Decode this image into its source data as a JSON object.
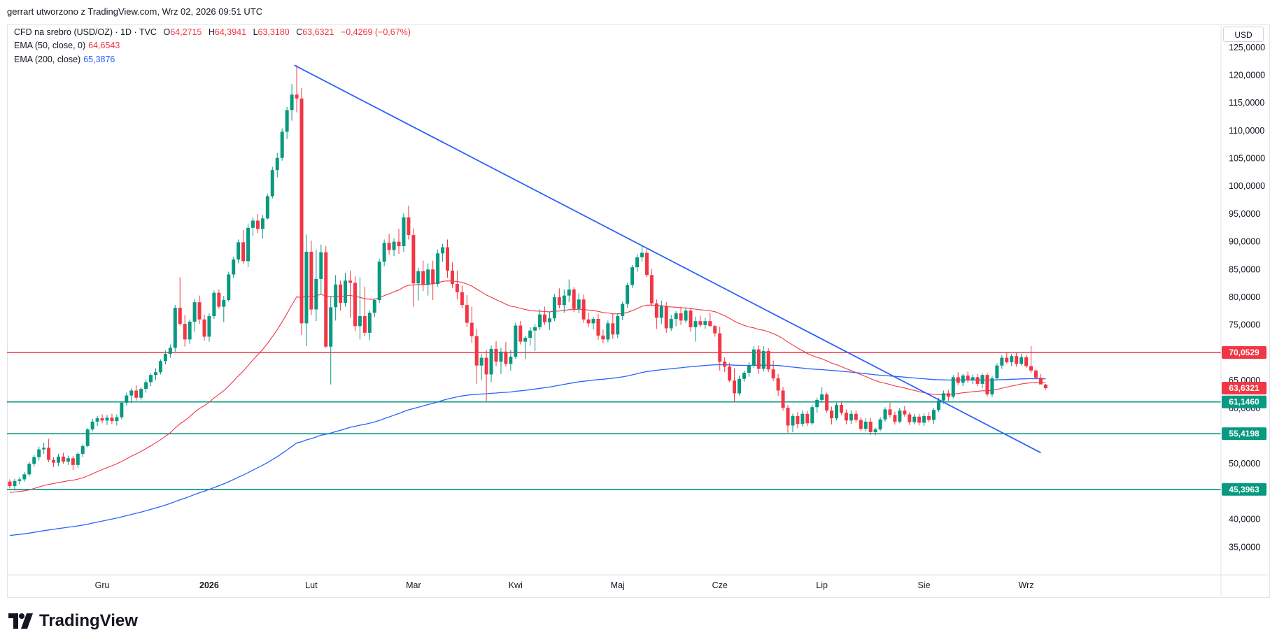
{
  "header": {
    "attribution": "gerrart utworzono z TradingView.com, Wrz 02, 2026 09:51 UTC"
  },
  "legend": {
    "instrument": "CFD na srebro (USD/OZ) · 1D · TVC",
    "o_label": "O",
    "o_value": "64,2715",
    "h_label": "H",
    "h_value": "64,3941",
    "l_label": "L",
    "l_value": "63,3180",
    "c_label": "C",
    "c_value": "63,6321",
    "change": "−0,4269 (−0,67%)",
    "ema50_label": "EMA (50, close, 0)",
    "ema50_value": "64,6543",
    "ema200_label": "EMA (200, close)",
    "ema200_value": "65,3876"
  },
  "currency": "USD",
  "brand": {
    "name": "TradingView"
  },
  "colors": {
    "up": "#089981",
    "down": "#f23645",
    "ema50": "#f23645",
    "ema200": "#2962ff",
    "trendline": "#2962ff",
    "resistance": "#f23645",
    "support": "#089981"
  },
  "chart_data": {
    "type": "candlestick",
    "yaxis": {
      "min": 30,
      "max": 129,
      "ticks": [
        35,
        40,
        50,
        55,
        60,
        65,
        75,
        80,
        85,
        90,
        95,
        100,
        105,
        110,
        115,
        120,
        125
      ],
      "tick_labels": [
        "35,0000",
        "40,0000",
        "50,0000",
        "55,0000",
        "60,0000",
        "65,0000",
        "75,0000",
        "80,0000",
        "85,0000",
        "90,0000",
        "95,0000",
        "100,0000",
        "105,0000",
        "110,0000",
        "115,0000",
        "120,0000",
        "125,0000"
      ]
    },
    "xaxis": {
      "labels": [
        "Gru",
        "2026",
        "Lut",
        "Mar",
        "Kwi",
        "Maj",
        "Cze",
        "Lip",
        "Sie",
        "Wrz"
      ],
      "label_bars": [
        19,
        41,
        62,
        83,
        104,
        125,
        146,
        167,
        188,
        209
      ],
      "bold": [
        "2026"
      ]
    },
    "price_levels": [
      {
        "value": 70.0529,
        "label": "70,0529",
        "role": "resistance"
      },
      {
        "value": 63.6321,
        "label": "63,6321",
        "role": "last"
      },
      {
        "value": 61.146,
        "label": "61,1460",
        "role": "support"
      },
      {
        "value": 55.4198,
        "label": "55,4198",
        "role": "support"
      },
      {
        "value": 45.3963,
        "label": "45,3963",
        "role": "support"
      }
    ],
    "trendline": {
      "from": [
        58.5,
        121.8
      ],
      "to": [
        212,
        52.0
      ]
    },
    "candles": [
      [
        46.8,
        47.2,
        45.6,
        46.0
      ],
      [
        46.0,
        47.3,
        45.2,
        46.9
      ],
      [
        46.9,
        47.6,
        46.3,
        47.2
      ],
      [
        47.2,
        48.5,
        46.8,
        48.1
      ],
      [
        48.1,
        50.4,
        47.8,
        50.0
      ],
      [
        50.0,
        51.6,
        49.5,
        51.2
      ],
      [
        51.2,
        53.1,
        50.6,
        52.6
      ],
      [
        52.6,
        53.8,
        51.8,
        52.9
      ],
      [
        52.9,
        54.5,
        50.3,
        50.7
      ],
      [
        50.7,
        51.2,
        49.4,
        50.2
      ],
      [
        50.2,
        51.8,
        49.6,
        51.3
      ],
      [
        51.3,
        52.0,
        50.0,
        50.4
      ],
      [
        50.4,
        51.5,
        49.8,
        51.0
      ],
      [
        51.0,
        51.4,
        48.9,
        49.8
      ],
      [
        49.8,
        52.1,
        49.3,
        51.8
      ],
      [
        51.8,
        53.5,
        51.2,
        53.2
      ],
      [
        53.2,
        56.4,
        53.0,
        56.2
      ],
      [
        56.2,
        58.1,
        55.9,
        57.6
      ],
      [
        57.6,
        58.6,
        56.8,
        58.2
      ],
      [
        58.2,
        58.9,
        57.3,
        57.8
      ],
      [
        57.8,
        58.8,
        57.0,
        58.3
      ],
      [
        58.3,
        59.0,
        57.2,
        57.7
      ],
      [
        57.7,
        58.9,
        56.9,
        58.4
      ],
      [
        58.4,
        61.2,
        58.0,
        61.0
      ],
      [
        61.0,
        62.8,
        60.5,
        62.3
      ],
      [
        62.3,
        63.6,
        61.0,
        63.2
      ],
      [
        63.2,
        64.1,
        61.4,
        61.9
      ],
      [
        61.9,
        63.8,
        61.5,
        63.5
      ],
      [
        63.5,
        65.2,
        62.8,
        64.7
      ],
      [
        64.7,
        66.3,
        64.0,
        66.0
      ],
      [
        66.0,
        67.2,
        65.1,
        66.5
      ],
      [
        66.5,
        68.8,
        66.1,
        68.5
      ],
      [
        68.5,
        70.4,
        67.9,
        69.8
      ],
      [
        69.8,
        71.5,
        69.1,
        70.9
      ],
      [
        70.9,
        78.6,
        70.2,
        78.1
      ],
      [
        78.1,
        83.6,
        74.9,
        75.2
      ],
      [
        75.2,
        76.8,
        71.1,
        72.4
      ],
      [
        72.4,
        76.0,
        71.6,
        75.6
      ],
      [
        75.6,
        79.7,
        73.8,
        79.1
      ],
      [
        79.1,
        80.3,
        75.2,
        76.0
      ],
      [
        76.0,
        76.9,
        72.2,
        72.9
      ],
      [
        72.9,
        77.1,
        72.0,
        76.6
      ],
      [
        76.6,
        81.2,
        76.1,
        80.8
      ],
      [
        80.8,
        81.4,
        77.9,
        78.3
      ],
      [
        78.3,
        80.2,
        75.5,
        79.5
      ],
      [
        79.5,
        84.6,
        79.2,
        84.1
      ],
      [
        84.1,
        87.3,
        83.5,
        86.8
      ],
      [
        86.8,
        90.4,
        86.1,
        89.9
      ],
      [
        89.9,
        92.1,
        86.0,
        86.5
      ],
      [
        86.5,
        93.2,
        85.4,
        92.5
      ],
      [
        92.5,
        94.4,
        91.0,
        93.8
      ],
      [
        93.8,
        95.0,
        91.6,
        92.3
      ],
      [
        92.3,
        94.8,
        90.6,
        94.2
      ],
      [
        94.2,
        98.6,
        94.0,
        98.2
      ],
      [
        98.2,
        103.5,
        97.8,
        102.9
      ],
      [
        102.9,
        106.0,
        101.6,
        105.1
      ],
      [
        105.1,
        110.4,
        104.6,
        109.8
      ],
      [
        109.8,
        114.3,
        108.5,
        113.7
      ],
      [
        113.7,
        118.4,
        111.8,
        116.5
      ],
      [
        116.5,
        121.8,
        113.3,
        115.8
      ],
      [
        115.8,
        117.7,
        73.2,
        75.3
      ],
      [
        75.3,
        91.3,
        71.2,
        88.2
      ],
      [
        88.2,
        90.2,
        76.8,
        77.8
      ],
      [
        77.8,
        88.6,
        75.7,
        83.3
      ],
      [
        83.3,
        89.5,
        80.6,
        88.1
      ],
      [
        88.1,
        89.2,
        70.9,
        71.1
      ],
      [
        71.1,
        80.2,
        64.3,
        78.2
      ],
      [
        78.2,
        84.0,
        75.8,
        82.3
      ],
      [
        82.3,
        83.0,
        77.6,
        79.0
      ],
      [
        79.0,
        84.4,
        78.3,
        83.0
      ],
      [
        83.0,
        84.8,
        76.3,
        82.6
      ],
      [
        82.6,
        83.8,
        73.9,
        74.8
      ],
      [
        74.8,
        83.6,
        72.4,
        76.6
      ],
      [
        76.6,
        81.9,
        73.0,
        73.6
      ],
      [
        73.6,
        77.6,
        72.3,
        77.2
      ],
      [
        77.2,
        79.8,
        76.4,
        79.5
      ],
      [
        79.5,
        86.9,
        79.0,
        86.4
      ],
      [
        86.4,
        90.4,
        85.6,
        89.8
      ],
      [
        89.8,
        91.4,
        87.7,
        88.5
      ],
      [
        88.5,
        90.6,
        87.4,
        90.0
      ],
      [
        90.0,
        92.3,
        87.8,
        89.2
      ],
      [
        89.2,
        95.1,
        88.2,
        94.4
      ],
      [
        94.4,
        96.5,
        90.4,
        91.2
      ],
      [
        91.2,
        92.4,
        78.3,
        82.5
      ],
      [
        82.5,
        85.3,
        79.4,
        84.7
      ],
      [
        84.7,
        86.6,
        81.1,
        82.2
      ],
      [
        82.2,
        86.1,
        80.3,
        85.0
      ],
      [
        85.0,
        86.6,
        79.5,
        82.4
      ],
      [
        82.4,
        88.6,
        81.9,
        87.9
      ],
      [
        87.9,
        89.6,
        86.4,
        89.0
      ],
      [
        89.0,
        90.4,
        83.5,
        84.8
      ],
      [
        84.8,
        86.3,
        81.7,
        82.4
      ],
      [
        82.4,
        84.8,
        79.6,
        80.9
      ],
      [
        80.9,
        82.1,
        78.0,
        78.6
      ],
      [
        78.6,
        80.4,
        74.6,
        75.4
      ],
      [
        75.4,
        78.3,
        71.8,
        73.0
      ],
      [
        73.0,
        74.3,
        64.4,
        67.7
      ],
      [
        67.7,
        69.8,
        65.1,
        69.1
      ],
      [
        69.1,
        70.5,
        61.3,
        66.1
      ],
      [
        66.1,
        71.3,
        64.7,
        70.7
      ],
      [
        70.7,
        72.1,
        67.6,
        68.4
      ],
      [
        68.4,
        70.9,
        66.2,
        70.2
      ],
      [
        70.2,
        71.9,
        67.5,
        68.0
      ],
      [
        68.0,
        70.5,
        66.8,
        69.3
      ],
      [
        69.3,
        75.4,
        68.9,
        74.9
      ],
      [
        74.9,
        75.7,
        71.5,
        72.0
      ],
      [
        72.0,
        73.1,
        68.8,
        72.7
      ],
      [
        72.7,
        74.6,
        71.3,
        74.0
      ],
      [
        74.0,
        75.2,
        70.3,
        74.6
      ],
      [
        74.6,
        77.8,
        74.1,
        76.9
      ],
      [
        76.9,
        78.3,
        75.0,
        75.5
      ],
      [
        75.5,
        77.4,
        74.1,
        76.2
      ],
      [
        76.2,
        80.6,
        75.7,
        80.0
      ],
      [
        80.0,
        81.6,
        78.0,
        78.6
      ],
      [
        78.6,
        81.4,
        77.2,
        80.3
      ],
      [
        80.3,
        83.2,
        79.1,
        81.4
      ],
      [
        81.4,
        81.8,
        77.3,
        77.9
      ],
      [
        77.9,
        80.7,
        77.1,
        79.6
      ],
      [
        79.6,
        80.5,
        75.4,
        76.0
      ],
      [
        76.0,
        77.2,
        74.6,
        75.3
      ],
      [
        75.3,
        76.5,
        74.2,
        76.1
      ],
      [
        76.1,
        77.0,
        72.3,
        73.1
      ],
      [
        73.1,
        74.2,
        71.7,
        72.4
      ],
      [
        72.4,
        75.8,
        71.9,
        75.3
      ],
      [
        75.3,
        77.0,
        72.5,
        73.3
      ],
      [
        73.3,
        77.1,
        72.6,
        76.6
      ],
      [
        76.6,
        79.2,
        75.9,
        78.8
      ],
      [
        78.8,
        82.6,
        78.1,
        82.2
      ],
      [
        82.2,
        85.8,
        81.7,
        85.4
      ],
      [
        85.4,
        87.8,
        84.6,
        87.2
      ],
      [
        87.2,
        89.4,
        86.4,
        88.0
      ],
      [
        88.0,
        88.9,
        83.6,
        84.0
      ],
      [
        84.0,
        85.1,
        78.4,
        78.9
      ],
      [
        78.9,
        79.6,
        74.3,
        76.3
      ],
      [
        76.3,
        79.4,
        75.2,
        78.4
      ],
      [
        78.4,
        79.1,
        73.6,
        74.4
      ],
      [
        74.4,
        76.8,
        73.9,
        76.1
      ],
      [
        76.1,
        77.5,
        74.8,
        77.1
      ],
      [
        77.1,
        78.3,
        75.0,
        75.8
      ],
      [
        75.8,
        78.1,
        75.4,
        77.6
      ],
      [
        77.6,
        78.0,
        73.8,
        74.6
      ],
      [
        74.6,
        76.5,
        72.0,
        75.7
      ],
      [
        75.7,
        76.7,
        74.6,
        75.0
      ],
      [
        75.0,
        76.3,
        74.3,
        75.7
      ],
      [
        75.7,
        77.2,
        74.8,
        74.8
      ],
      [
        74.8,
        75.0,
        72.9,
        73.5
      ],
      [
        73.5,
        74.7,
        66.8,
        68.4
      ],
      [
        68.4,
        69.2,
        66.5,
        67.5
      ],
      [
        67.5,
        68.2,
        64.7,
        65.0
      ],
      [
        65.0,
        67.2,
        61.1,
        62.7
      ],
      [
        62.7,
        65.9,
        62.3,
        65.3
      ],
      [
        65.3,
        66.8,
        64.8,
        66.4
      ],
      [
        66.4,
        68.3,
        65.7,
        67.7
      ],
      [
        67.7,
        71.2,
        67.3,
        70.6
      ],
      [
        70.6,
        71.4,
        66.2,
        67.1
      ],
      [
        67.1,
        71.2,
        66.6,
        70.3
      ],
      [
        70.3,
        70.8,
        66.5,
        67.0
      ],
      [
        67.0,
        68.6,
        64.9,
        65.4
      ],
      [
        65.4,
        66.2,
        62.2,
        63.2
      ],
      [
        63.2,
        63.8,
        59.6,
        60.1
      ],
      [
        60.1,
        60.6,
        55.6,
        56.9
      ],
      [
        56.9,
        59.0,
        55.7,
        58.6
      ],
      [
        58.6,
        59.3,
        56.4,
        57.2
      ],
      [
        57.2,
        59.6,
        56.7,
        59.0
      ],
      [
        59.0,
        59.5,
        56.8,
        57.3
      ],
      [
        57.3,
        60.6,
        57.0,
        60.2
      ],
      [
        60.2,
        61.9,
        59.2,
        61.5
      ],
      [
        61.5,
        63.8,
        61.0,
        62.5
      ],
      [
        62.5,
        62.8,
        59.2,
        59.6
      ],
      [
        59.6,
        60.3,
        57.1,
        58.2
      ],
      [
        58.2,
        61.0,
        57.8,
        60.6
      ],
      [
        60.6,
        61.3,
        58.8,
        59.2
      ],
      [
        59.2,
        59.8,
        57.1,
        57.8
      ],
      [
        57.8,
        59.6,
        57.2,
        59.0
      ],
      [
        59.0,
        59.6,
        57.4,
        57.9
      ],
      [
        57.9,
        58.4,
        55.9,
        56.3
      ],
      [
        56.3,
        58.2,
        55.8,
        57.6
      ],
      [
        57.6,
        58.3,
        55.2,
        55.7
      ],
      [
        55.7,
        56.5,
        55.1,
        56.2
      ],
      [
        56.2,
        58.4,
        55.9,
        58.0
      ],
      [
        58.0,
        60.2,
        57.6,
        59.8
      ],
      [
        59.8,
        61.0,
        58.3,
        58.8
      ],
      [
        58.8,
        59.4,
        57.1,
        57.6
      ],
      [
        57.6,
        60.1,
        57.3,
        59.6
      ],
      [
        59.6,
        60.4,
        58.5,
        58.9
      ],
      [
        58.9,
        59.3,
        57.0,
        57.5
      ],
      [
        57.5,
        59.0,
        57.1,
        58.5
      ],
      [
        58.5,
        59.0,
        56.9,
        57.4
      ],
      [
        57.4,
        59.1,
        56.8,
        58.6
      ],
      [
        58.6,
        59.3,
        57.5,
        57.9
      ],
      [
        57.9,
        60.1,
        57.2,
        59.7
      ],
      [
        59.7,
        61.9,
        59.3,
        61.4
      ],
      [
        61.4,
        63.2,
        60.8,
        62.7
      ],
      [
        62.7,
        63.3,
        61.3,
        62.1
      ],
      [
        62.1,
        66.0,
        61.8,
        65.6
      ],
      [
        65.6,
        66.5,
        64.2,
        64.6
      ],
      [
        64.6,
        66.2,
        64.0,
        65.9
      ],
      [
        65.9,
        66.6,
        64.6,
        65.1
      ],
      [
        65.1,
        66.1,
        64.4,
        65.6
      ],
      [
        65.6,
        66.2,
        64.0,
        64.4
      ],
      [
        64.4,
        66.3,
        63.6,
        66.0
      ],
      [
        66.0,
        66.4,
        62.1,
        62.5
      ],
      [
        62.5,
        65.9,
        62.0,
        65.4
      ],
      [
        65.4,
        68.1,
        65.0,
        67.7
      ],
      [
        67.7,
        69.6,
        67.1,
        69.1
      ],
      [
        69.1,
        70.1,
        68.0,
        68.3
      ],
      [
        68.3,
        69.8,
        67.6,
        69.4
      ],
      [
        69.4,
        70.0,
        67.5,
        68.0
      ],
      [
        68.0,
        69.8,
        67.7,
        69.2
      ],
      [
        69.2,
        69.6,
        67.3,
        67.6
      ],
      [
        67.6,
        71.2,
        66.3,
        66.8
      ],
      [
        66.8,
        67.1,
        65.2,
        65.5
      ],
      [
        65.5,
        66.2,
        64.4,
        64.3
      ],
      [
        64.2715,
        64.3941,
        63.318,
        63.6321
      ]
    ]
  }
}
